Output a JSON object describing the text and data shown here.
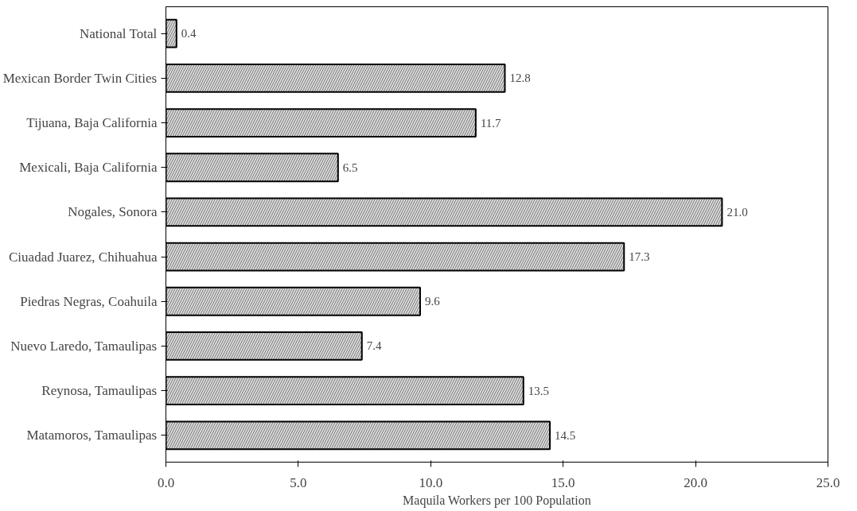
{
  "chart_data": {
    "type": "bar",
    "orientation": "horizontal",
    "xlabel": "Maquila Workers per 100 Population",
    "categories": [
      "National Total",
      "Mexican Border Twin Cities",
      "Tijuana, Baja California",
      "Mexicali, Baja California",
      "Nogales, Sonora",
      "Ciuadad Juarez, Chihuahua",
      "Piedras Negras, Coahuila",
      "Nuevo Laredo, Tamaulipas",
      "Reynosa, Tamaulipas",
      "Matamoros, Tamaulipas"
    ],
    "values": [
      0.4,
      12.8,
      11.7,
      6.5,
      21.0,
      17.3,
      9.6,
      7.4,
      13.5,
      14.5
    ],
    "value_labels": [
      "0.4",
      "12.8",
      "11.7",
      "6.5",
      "21.0",
      "17.3",
      "9.6",
      "7.4",
      "13.5",
      "14.5"
    ],
    "color": "#d9d9d9",
    "xlim": [
      0,
      25
    ],
    "xticks": [
      {
        "value": 0,
        "label": "0.0"
      },
      {
        "value": 5,
        "label": "5.0"
      },
      {
        "value": 10,
        "label": "10.0"
      },
      {
        "value": 15,
        "label": "15.0"
      },
      {
        "value": 20,
        "label": "20.0"
      },
      {
        "value": 25,
        "label": "25.0"
      }
    ],
    "grid": false
  }
}
